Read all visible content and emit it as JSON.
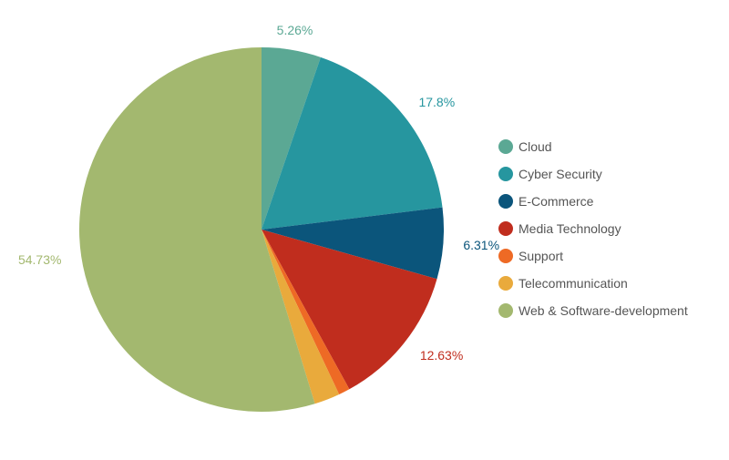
{
  "chart_data": {
    "type": "pie",
    "title": "",
    "legend_position": "right",
    "start_angle_deg": 0,
    "direction": "clockwise",
    "slices": [
      {
        "name": "Cloud",
        "value": 5.26,
        "label": "5.26%",
        "color": "#5ba894"
      },
      {
        "name": "Cyber Security",
        "value": 17.8,
        "label": "17.8%",
        "color": "#26969f"
      },
      {
        "name": "E-Commerce",
        "value": 6.31,
        "label": "6.31%",
        "color": "#0b557b"
      },
      {
        "name": "Media Technology",
        "value": 12.63,
        "label": "12.63%",
        "color": "#c02d1e"
      },
      {
        "name": "Support",
        "value": 1.0,
        "label": "",
        "color": "#ee6a25"
      },
      {
        "name": "Telecommunication",
        "value": 2.27,
        "label": "",
        "color": "#e9aa3c"
      },
      {
        "name": "Web & Software-development",
        "value": 54.73,
        "label": "54.73%",
        "color": "#a3b86f"
      }
    ]
  }
}
